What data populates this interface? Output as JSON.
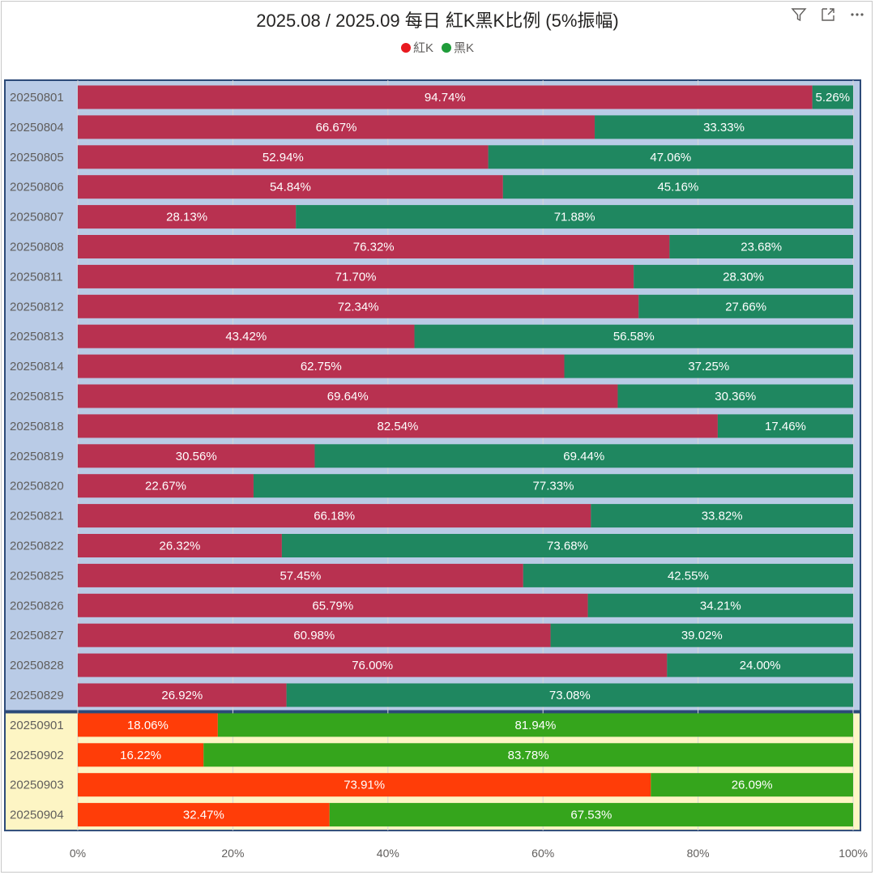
{
  "title": "2025.08 / 2025.09 每日 紅K黑K比例 (5%振幅)",
  "legend": [
    {
      "label": "紅K",
      "color": "#e8191f"
    },
    {
      "label": "黑K",
      "color": "#1f9c3a"
    }
  ],
  "toolbar": {
    "filter_icon": "filter-icon",
    "focus_icon": "focus-mode-icon",
    "more_icon": "more-options-icon"
  },
  "colors": {
    "aug_red": "#b83150",
    "aug_green": "#1f8760",
    "aug_bg": "#b9cbe6",
    "sep_red": "#ff3d08",
    "sep_green": "#35a51c",
    "sep_bg": "#fdf5c4",
    "border": "#2c4a78"
  },
  "chart_data": {
    "type": "bar",
    "orientation": "horizontal",
    "stacked": "100%",
    "title": "2025.08 / 2025.09 每日 紅K黑K比例 (5%振幅)",
    "categories": [
      "20250801",
      "20250804",
      "20250805",
      "20250806",
      "20250807",
      "20250808",
      "20250811",
      "20250812",
      "20250813",
      "20250814",
      "20250815",
      "20250818",
      "20250819",
      "20250820",
      "20250821",
      "20250822",
      "20250825",
      "20250826",
      "20250827",
      "20250828",
      "20250829",
      "20250901",
      "20250902",
      "20250903",
      "20250904"
    ],
    "series": [
      {
        "name": "紅K",
        "values": [
          94.74,
          66.67,
          52.94,
          54.84,
          28.13,
          76.32,
          71.7,
          72.34,
          43.42,
          62.75,
          69.64,
          82.54,
          30.56,
          22.67,
          66.18,
          26.32,
          57.45,
          65.79,
          60.98,
          76.0,
          26.92,
          18.06,
          16.22,
          73.91,
          32.47
        ],
        "labels": [
          "94.74%",
          "66.67%",
          "52.94%",
          "54.84%",
          "28.13%",
          "76.32%",
          "71.70%",
          "72.34%",
          "43.42%",
          "62.75%",
          "69.64%",
          "82.54%",
          "30.56%",
          "22.67%",
          "66.18%",
          "26.32%",
          "57.45%",
          "65.79%",
          "60.98%",
          "76.00%",
          "26.92%",
          "18.06%",
          "16.22%",
          "73.91%",
          "32.47%"
        ]
      },
      {
        "name": "黑K",
        "values": [
          5.26,
          33.33,
          47.06,
          45.16,
          71.88,
          23.68,
          28.3,
          27.66,
          56.58,
          37.25,
          30.36,
          17.46,
          69.44,
          77.33,
          33.82,
          73.68,
          42.55,
          34.21,
          39.02,
          24.0,
          73.08,
          81.94,
          83.78,
          26.09,
          67.53
        ],
        "labels": [
          "5.26%",
          "33.33%",
          "47.06%",
          "45.16%",
          "71.88%",
          "23.68%",
          "28.30%",
          "27.66%",
          "56.58%",
          "37.25%",
          "30.36%",
          "17.46%",
          "69.44%",
          "77.33%",
          "33.82%",
          "73.68%",
          "42.55%",
          "34.21%",
          "39.02%",
          "24.00%",
          "73.08%",
          "81.94%",
          "83.78%",
          "26.09%",
          "67.53%"
        ]
      }
    ],
    "groups": [
      {
        "name": "2025.08",
        "count": 21
      },
      {
        "name": "2025.09",
        "count": 4
      }
    ],
    "xlim": [
      0,
      100
    ],
    "xticks": [
      "0%",
      "20%",
      "40%",
      "60%",
      "80%",
      "100%"
    ],
    "legend_position": "top-center"
  }
}
